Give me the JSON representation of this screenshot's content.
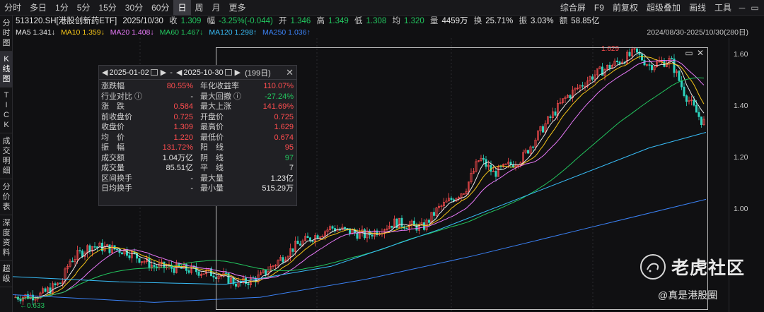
{
  "toolbar": {
    "periods": [
      "分时",
      "多日",
      "1分",
      "5分",
      "15分",
      "30分",
      "60分",
      "日",
      "周",
      "月",
      "更多"
    ],
    "active_period": "日",
    "tools": [
      "综合屏",
      "F9",
      "前复权",
      "超级叠加",
      "画线",
      "工具"
    ]
  },
  "sidebar": {
    "items": [
      "分时图",
      "K线图",
      "TICK",
      "成交明细",
      "分价表",
      "深度资料",
      "超级"
    ],
    "active": "K线图"
  },
  "quote": {
    "symbol": "513120.SH[港股创新药ETF]",
    "date": "2025/10/30",
    "close_label": "收",
    "close": "1.309",
    "change_label": "幅",
    "change": "-3.25%(-0.044)",
    "open_label": "开",
    "open": "1.346",
    "high_label": "高",
    "high": "1.349",
    "low_label": "低",
    "low": "1.308",
    "avg_label": "均",
    "avg": "1.320",
    "vol_label": "量",
    "vol": "4459万",
    "turnover_label": "换",
    "turnover": "25.71%",
    "amp_label": "振",
    "amp": "3.03%",
    "amount_label": "额",
    "amount": "58.85亿"
  },
  "ma": {
    "ma5": "MA5 1.341↓",
    "ma10": "MA10 1.359↓",
    "ma20": "MA20 1.408↓",
    "ma60": "MA60 1.467↓",
    "ma120": "MA120 1.298↑",
    "ma250": "MA250 1.036↑",
    "range": "2024/08/30-2025/10/30(280日)"
  },
  "colors": {
    "up": "#ff4d4f",
    "down": "#22c55e",
    "ma5": "#e8e8e8",
    "ma10": "#f5c518",
    "ma20": "#e879f9",
    "ma60": "#22c55e",
    "ma120": "#38bdf8",
    "ma250": "#3b82f6"
  },
  "price_axis": [
    "1.60",
    "1.40",
    "1.20",
    "1.00"
  ],
  "annotations": {
    "peak": "1.629",
    "trough": "0.633"
  },
  "stats": {
    "start_date": "2025-01-02",
    "end_date": "2025-10-30",
    "days": "(199日)",
    "dash": "-",
    "rows": [
      {
        "k1": "涨跌幅",
        "v1": "80.55%",
        "c1": "up",
        "k2": "年化收益率",
        "v2": "110.07%",
        "c2": "up"
      },
      {
        "k1": "行业对比 ⓘ",
        "v1": "-",
        "c1": "white",
        "k2": "最大回撤 ⓘ",
        "v2": "-27.24%",
        "c2": "down"
      },
      {
        "k1": "涨　跌",
        "v1": "0.584",
        "c1": "up",
        "k2": "最大上涨",
        "v2": "141.69%",
        "c2": "up"
      },
      {
        "k1": "前收盘价",
        "v1": "0.725",
        "c1": "up",
        "k2": "开盘价",
        "v2": "0.725",
        "c2": "up"
      },
      {
        "k1": "收盘价",
        "v1": "1.309",
        "c1": "up",
        "k2": "最高价",
        "v2": "1.629",
        "c2": "up"
      },
      {
        "k1": "均　价",
        "v1": "1.220",
        "c1": "up",
        "k2": "最低价",
        "v2": "0.674",
        "c2": "up"
      },
      {
        "k1": "振　幅",
        "v1": "131.72%",
        "c1": "up",
        "k2": "阳　线",
        "v2": "95",
        "c2": "up"
      },
      {
        "k1": "成交额",
        "v1": "1.04万亿",
        "c1": "white",
        "k2": "阴　线",
        "v2": "97",
        "c2": "down"
      },
      {
        "k1": "成交量",
        "v1": "85.51亿",
        "c1": "white",
        "k2": "平　线",
        "v2": "7",
        "c2": "white"
      },
      {
        "k1": "区间换手",
        "v1": "-",
        "c1": "white",
        "k2": "最大量",
        "v2": "1.23亿",
        "c2": "white"
      },
      {
        "k1": "日均换手",
        "v1": "-",
        "c1": "white",
        "k2": "最小量",
        "v2": "515.29万",
        "c2": "white"
      }
    ]
  },
  "watermark": {
    "title": "老虎社区",
    "user": "@真是港股圈"
  }
}
